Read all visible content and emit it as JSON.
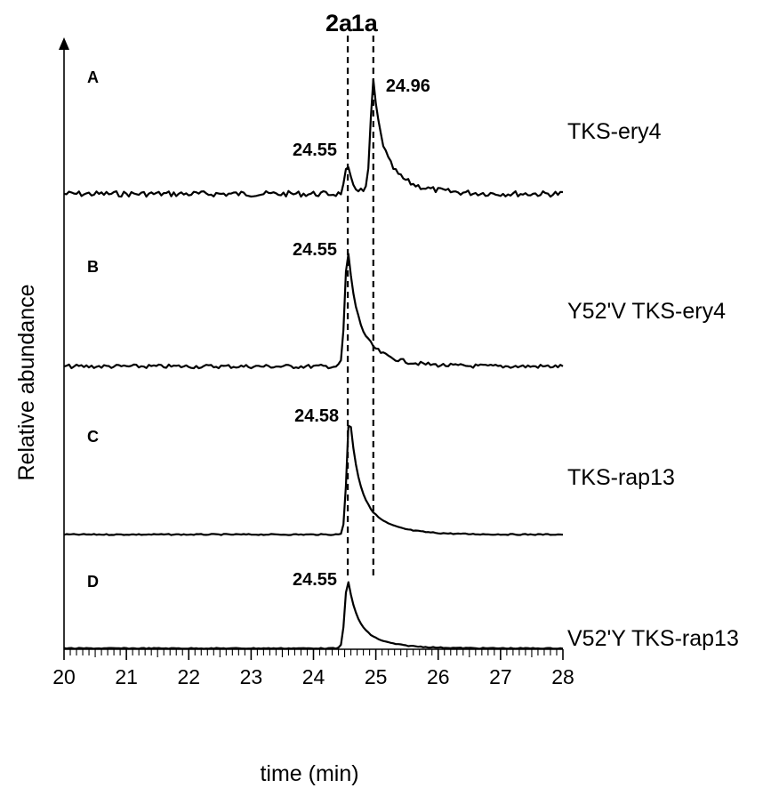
{
  "chart_data": {
    "type": "line",
    "xlabel": "time (min)",
    "ylabel": "Relative abundance",
    "xlim": [
      20,
      28
    ],
    "x_ticks": [
      "20",
      "21",
      "22",
      "23",
      "24",
      "25",
      "26",
      "27",
      "28"
    ],
    "markers": [
      {
        "label": "2a",
        "x": 24.55
      },
      {
        "label": "1a",
        "x": 24.96
      }
    ],
    "panels": [
      {
        "letter": "A",
        "name": "TKS-ery4",
        "peaks": [
          {
            "label": "24.55",
            "x": 24.55,
            "height": 0.25,
            "tail": 0.4
          },
          {
            "label": "24.96",
            "x": 24.96,
            "height": 1.0,
            "tail": 1.0
          }
        ]
      },
      {
        "letter": "B",
        "name": "Y52'V TKS-ery4",
        "peaks": [
          {
            "label": "24.55",
            "x": 24.55,
            "height": 1.0,
            "tail": 1.0
          }
        ]
      },
      {
        "letter": "C",
        "name": "TKS-rap13",
        "peaks": [
          {
            "label": "24.58",
            "x": 24.58,
            "height": 1.0,
            "tail": 1.0
          }
        ]
      },
      {
        "letter": "D",
        "name": "V52'Y TKS-rap13",
        "peaks": [
          {
            "label": "24.55",
            "x": 24.55,
            "height": 1.0,
            "tail": 1.0
          }
        ]
      }
    ]
  }
}
